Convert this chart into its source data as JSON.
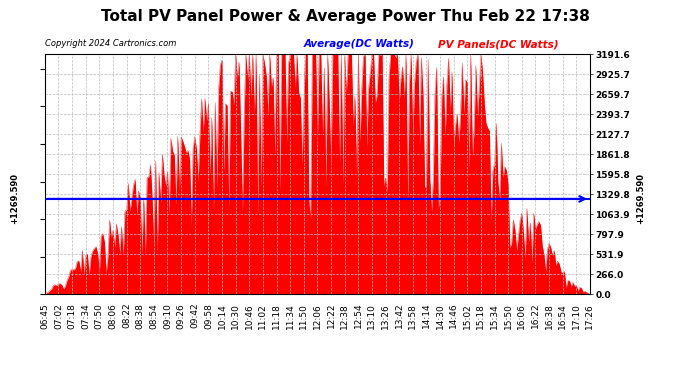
{
  "title": "Total PV Panel Power & Average Power Thu Feb 22 17:38",
  "copyright": "Copyright 2024 Cartronics.com",
  "avg_label": "Average(DC Watts)",
  "pv_label": "PV Panels(DC Watts)",
  "avg_color": "blue",
  "pv_color": "red",
  "avg_value": 1269.59,
  "y_max": 3191.6,
  "y_min": 0.0,
  "y_ticks": [
    0.0,
    266.0,
    531.9,
    797.9,
    1063.9,
    1329.8,
    1595.8,
    1861.8,
    2127.7,
    2393.7,
    2659.7,
    2925.7,
    3191.6
  ],
  "x_tick_labels": [
    "06:45",
    "07:02",
    "07:18",
    "07:34",
    "07:50",
    "08:06",
    "08:22",
    "08:38",
    "08:54",
    "09:10",
    "09:26",
    "09:42",
    "09:58",
    "10:14",
    "10:30",
    "10:46",
    "11:02",
    "11:18",
    "11:34",
    "11:50",
    "12:06",
    "12:22",
    "12:38",
    "12:54",
    "13:10",
    "13:26",
    "13:42",
    "13:58",
    "14:14",
    "14:30",
    "14:46",
    "15:02",
    "15:18",
    "15:34",
    "15:50",
    "16:06",
    "16:22",
    "16:38",
    "16:54",
    "17:10",
    "17:26"
  ],
  "background_color": "#ffffff",
  "grid_color": "#bbbbbb",
  "title_fontsize": 11,
  "tick_fontsize": 6.5,
  "avg_line_y": 1269.59,
  "pv_data_seed": 99
}
